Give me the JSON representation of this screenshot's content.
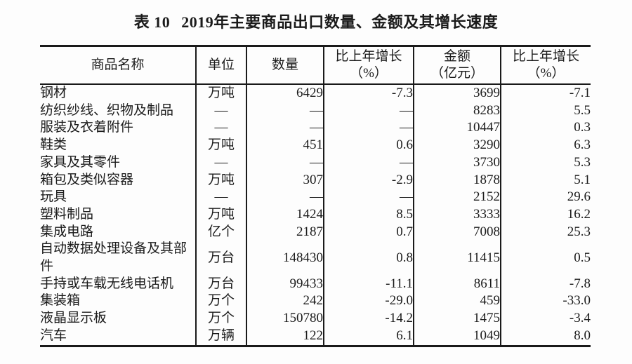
{
  "title": {
    "index_label": "表 10",
    "text": "2019年主要商品出口数量、金额及其增长速度"
  },
  "chart_data": {
    "type": "table",
    "columns": [
      {
        "key": "commodity-name",
        "label": "商品名称",
        "sublabel": ""
      },
      {
        "key": "unit",
        "label": "单位",
        "sublabel": ""
      },
      {
        "key": "quantity",
        "label": "数量",
        "sublabel": ""
      },
      {
        "key": "quantity-growth",
        "label": "比上年增长",
        "sublabel": "（%）"
      },
      {
        "key": "amount",
        "label": "金额",
        "sublabel": "（亿元）"
      },
      {
        "key": "amount-growth",
        "label": "比上年增长",
        "sublabel": "（%）"
      }
    ],
    "rows": [
      [
        "钢材",
        "万吨",
        "6429",
        "-7.3",
        "3699",
        "-7.1"
      ],
      [
        "纺织纱线、织物及制品",
        "—",
        "—",
        "—",
        "8283",
        "5.5"
      ],
      [
        "服装及衣着附件",
        "—",
        "—",
        "—",
        "10447",
        "0.3"
      ],
      [
        "鞋类",
        "万吨",
        "451",
        "0.6",
        "3290",
        "6.3"
      ],
      [
        "家具及其零件",
        "—",
        "—",
        "—",
        "3730",
        "5.3"
      ],
      [
        "箱包及类似容器",
        "万吨",
        "307",
        "-2.9",
        "1878",
        "5.1"
      ],
      [
        "玩具",
        "—",
        "—",
        "—",
        "2152",
        "29.6"
      ],
      [
        "塑料制品",
        "万吨",
        "1424",
        "8.5",
        "3333",
        "16.2"
      ],
      [
        "集成电路",
        "亿个",
        "2187",
        "0.7",
        "7008",
        "25.3"
      ],
      [
        "自动数据处理设备及其部件",
        "万台",
        "148430",
        "0.8",
        "11415",
        "0.5"
      ],
      [
        "手持或车载无线电话机",
        "万台",
        "99433",
        "-11.1",
        "8611",
        "-7.8"
      ],
      [
        "集装箱",
        "万个",
        "242",
        "-29.0",
        "459",
        "-33.0"
      ],
      [
        "液晶显示板",
        "万个",
        "150780",
        "-14.2",
        "1475",
        "-3.4"
      ],
      [
        "汽车",
        "万辆",
        "122",
        "6.1",
        "1049",
        "8.0"
      ]
    ]
  }
}
